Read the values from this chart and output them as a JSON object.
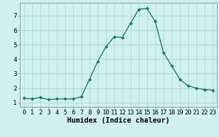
{
  "x": [
    0,
    1,
    2,
    3,
    4,
    5,
    6,
    7,
    8,
    9,
    10,
    11,
    12,
    13,
    14,
    15,
    16,
    17,
    18,
    19,
    20,
    21,
    22,
    23
  ],
  "y": [
    1.3,
    1.25,
    1.35,
    1.2,
    1.25,
    1.25,
    1.25,
    1.4,
    2.6,
    3.85,
    4.85,
    5.55,
    5.5,
    6.5,
    7.45,
    7.5,
    6.6,
    4.45,
    3.55,
    2.6,
    2.15,
    2.0,
    1.9,
    1.85
  ],
  "line_color": "#1a7a6a",
  "marker": "D",
  "markersize": 2.2,
  "linewidth": 1.0,
  "background_color": "#cff0ec",
  "grid_color": "#b0d8d4",
  "xlabel": "Humidex (Indice chaleur)",
  "xlim": [
    -0.5,
    23.5
  ],
  "ylim": [
    0.7,
    7.9
  ],
  "xticks": [
    0,
    1,
    2,
    3,
    4,
    5,
    6,
    7,
    8,
    9,
    10,
    11,
    12,
    13,
    14,
    15,
    16,
    17,
    18,
    19,
    20,
    21,
    22,
    23
  ],
  "yticks": [
    1,
    2,
    3,
    4,
    5,
    6,
    7
  ],
  "xlabel_fontsize": 7.5,
  "tick_fontsize": 6.5
}
